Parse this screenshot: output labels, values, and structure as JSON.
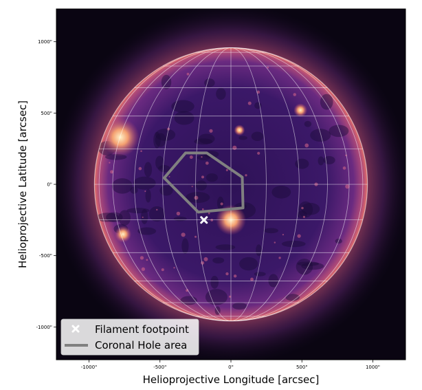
{
  "axes": {
    "xlabel": "Helioprojective Longitude [arcsec]",
    "ylabel": "Helioprojective Latitude [arcsec]",
    "xticks": [
      "-1000\"",
      "-500\"",
      "0\"",
      "500\"",
      "1000\""
    ],
    "yticks": [
      "1000\"",
      "500\"",
      "0\"",
      "-500\"",
      "-1000\""
    ],
    "xlim": [
      -1230,
      1230
    ],
    "ylim": [
      -1230,
      1230
    ]
  },
  "legend": {
    "location": "lower-left",
    "items": [
      {
        "label": "Filament footpoint",
        "marker": "x",
        "color": "#ffffff"
      },
      {
        "label": "Coronal Hole area",
        "marker": "line",
        "color": "#808080"
      }
    ]
  },
  "overlays": {
    "filament_footpoint": {
      "x": -190,
      "y": -250
    },
    "coronal_hole_polygon": [
      [
        -320,
        220
      ],
      [
        -170,
        220
      ],
      [
        80,
        50
      ],
      [
        85,
        -165
      ],
      [
        -230,
        -195
      ],
      [
        -470,
        45
      ]
    ]
  },
  "colors": {
    "colormap": "magma",
    "disk_core": "#2a1050",
    "limb_glow": "#e8785a",
    "background": "#0a0512",
    "grid": "#ffffff",
    "polygon": "#808080"
  },
  "solar_radius_arcsec": 960
}
